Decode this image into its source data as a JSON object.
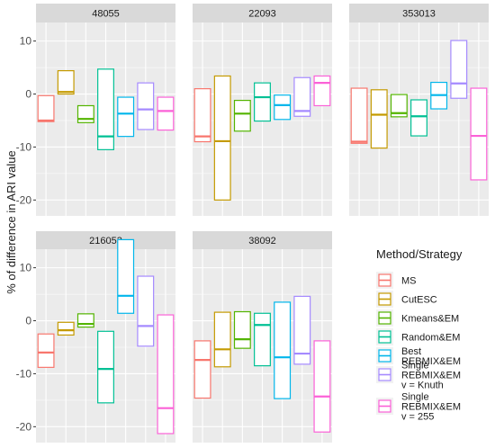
{
  "chart_data": {
    "type": "box",
    "ylabel": "% of difference in ARI value",
    "ylim": [
      -23,
      13.5
    ],
    "yticks": [
      -20,
      -10,
      0,
      10
    ],
    "grid": true,
    "legend": {
      "title": "Method/Strategy",
      "position": "right",
      "entries": [
        {
          "key": "ms",
          "lines": [
            "MS"
          ],
          "color": "#F8766D"
        },
        {
          "key": "cutesc",
          "lines": [
            "CutESC"
          ],
          "color": "#C49A00"
        },
        {
          "key": "kmeans",
          "lines": [
            "Kmeans&EM"
          ],
          "color": "#53B400"
        },
        {
          "key": "random",
          "lines": [
            "Random&EM"
          ],
          "color": "#00C094"
        },
        {
          "key": "best",
          "lines": [
            "Best",
            "REBMIX&EM"
          ],
          "color": "#00B6EB"
        },
        {
          "key": "knuth",
          "lines": [
            "Single",
            "REBMIX&EM",
            "v = Knuth"
          ],
          "color": "#A58AFF"
        },
        {
          "key": "v255",
          "lines": [
            "Single",
            "REBMIX&EM",
            "v = 255"
          ],
          "color": "#FB61D7"
        }
      ]
    },
    "panels": [
      {
        "title": "48055",
        "boxes": [
          {
            "low": -5.2,
            "mid": -5.0,
            "high": -0.3
          },
          {
            "low": 0.0,
            "mid": 0.4,
            "high": 4.4
          },
          {
            "low": -5.4,
            "mid": -4.7,
            "high": -2.2
          },
          {
            "low": -10.5,
            "mid": -8.0,
            "high": 4.7
          },
          {
            "low": -8.0,
            "mid": -3.7,
            "high": -0.6
          },
          {
            "low": -6.7,
            "mid": -2.9,
            "high": 2.1
          },
          {
            "low": -6.8,
            "mid": -3.2,
            "high": -0.6
          }
        ]
      },
      {
        "title": "22093",
        "boxes": [
          {
            "low": -9.0,
            "mid": -8.0,
            "high": 1.0
          },
          {
            "low": -20.0,
            "mid": -8.9,
            "high": 3.4
          },
          {
            "low": -7.0,
            "mid": -3.7,
            "high": -1.2
          },
          {
            "low": -5.1,
            "mid": -0.6,
            "high": 2.1
          },
          {
            "low": -4.8,
            "mid": -2.1,
            "high": -0.2
          },
          {
            "low": -4.2,
            "mid": -3.2,
            "high": 3.1
          },
          {
            "low": -2.2,
            "mid": 2.1,
            "high": 3.4
          }
        ]
      },
      {
        "title": "353013",
        "boxes": [
          {
            "low": -9.3,
            "mid": -9.0,
            "high": 1.1
          },
          {
            "low": -10.2,
            "mid": -3.9,
            "high": 0.8
          },
          {
            "low": -4.3,
            "mid": -3.6,
            "high": -0.1
          },
          {
            "low": -7.9,
            "mid": -4.2,
            "high": -1.1
          },
          {
            "low": -2.8,
            "mid": -0.2,
            "high": 2.2
          },
          {
            "low": -0.8,
            "mid": 2.0,
            "high": 10.1
          },
          {
            "low": -16.2,
            "mid": -7.9,
            "high": 1.1
          }
        ]
      },
      {
        "title": "216053",
        "boxes": [
          {
            "low": -8.8,
            "mid": -6.0,
            "high": -2.5
          },
          {
            "low": -2.7,
            "mid": -1.8,
            "high": -0.3
          },
          {
            "low": -1.2,
            "mid": -0.6,
            "high": 1.3
          },
          {
            "low": -15.5,
            "mid": -9.1,
            "high": -2.0
          },
          {
            "low": 1.4,
            "mid": 4.7,
            "high": 15.3
          },
          {
            "low": -4.8,
            "mid": -1.0,
            "high": 8.4
          },
          {
            "low": -21.3,
            "mid": -16.5,
            "high": 1.1
          }
        ]
      },
      {
        "title": "38092",
        "boxes": [
          {
            "low": -14.6,
            "mid": -7.4,
            "high": -3.8
          },
          {
            "low": -8.7,
            "mid": -5.4,
            "high": 1.6
          },
          {
            "low": -5.2,
            "mid": -3.5,
            "high": 1.7
          },
          {
            "low": -8.5,
            "mid": -0.8,
            "high": 1.4
          },
          {
            "low": -14.7,
            "mid": -6.9,
            "high": 3.5
          },
          {
            "low": -8.2,
            "mid": -6.2,
            "high": 4.6
          },
          {
            "low": -21.0,
            "mid": -14.3,
            "high": -3.8
          }
        ]
      }
    ]
  }
}
